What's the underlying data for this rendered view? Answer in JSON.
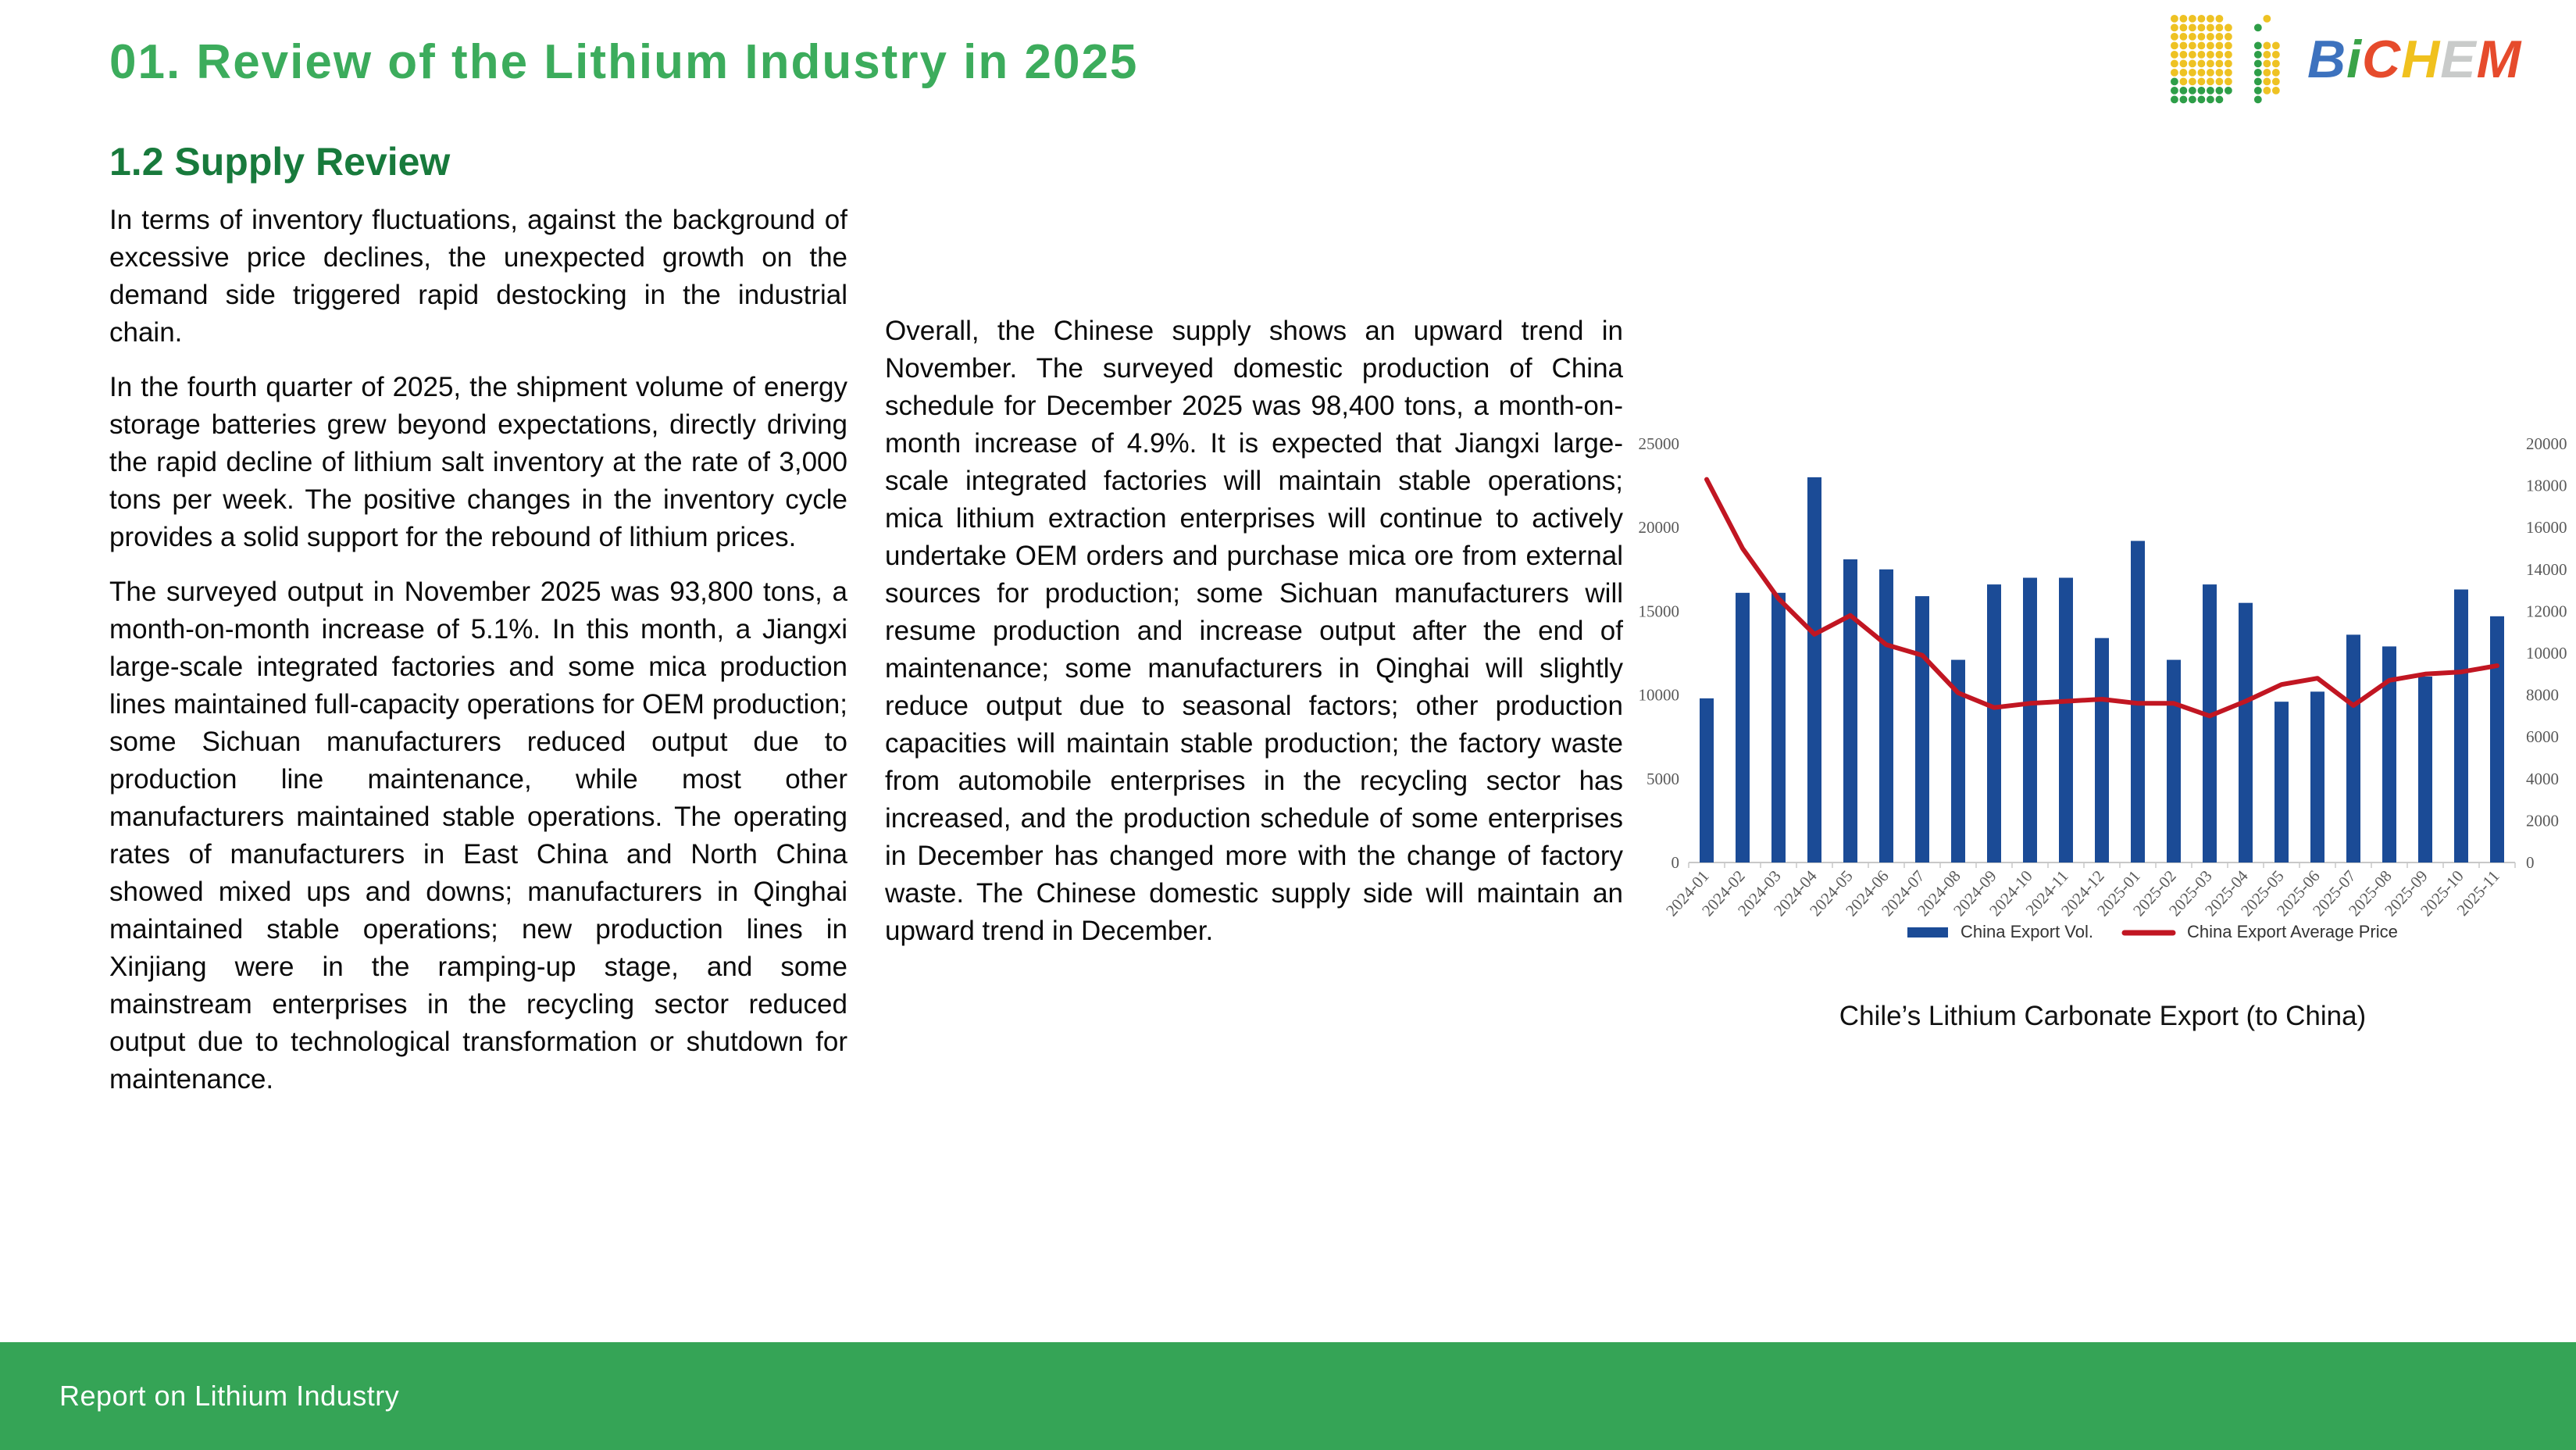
{
  "header": {
    "title": "01. Review of the Lithium Industry in 2025",
    "section": "1.2 Supply Review"
  },
  "logo": {
    "icon": "bichem-dot-matrix-icon",
    "letters": [
      {
        "ch": "B",
        "color": "#3D72BE"
      },
      {
        "ch": "i",
        "color": "#3AA348"
      },
      {
        "ch": "C",
        "color": "#E64B2C"
      },
      {
        "ch": "H",
        "color": "#F0C11E"
      },
      {
        "ch": "E",
        "color": "#C9CBCA"
      },
      {
        "ch": "M",
        "color": "#E64B2C"
      }
    ],
    "dot_yellow": "#EEC223",
    "dot_green": "#2E9E48"
  },
  "column1": {
    "paragraphs": [
      "In terms of inventory fluctuations, against the background of excessive price declines, the unexpected growth on the demand side triggered rapid destocking in the industrial chain.",
      "In the fourth quarter of 2025, the shipment volume of energy storage batteries grew beyond expectations, directly driving the rapid decline of lithium salt inventory at the rate of 3,000 tons per week. The positive changes in the inventory cycle provides a solid support for the rebound of lithium prices.",
      "The surveyed output in November 2025 was 93,800 tons, a month-on-month increase of 5.1%. In this month, a Jiangxi large-scale integrated factories and some mica production lines maintained full-capacity operations for OEM production; some Sichuan manufacturers reduced output due to production line maintenance, while most other manufacturers maintained stable operations. The operating rates of manufacturers in East China and North China showed mixed ups and downs; manufacturers in Qinghai maintained stable operations; new production lines in Xinjiang were in the ramping-up stage, and some mainstream enterprises in the recycling sector reduced output due to technological transformation or shutdown for maintenance."
    ]
  },
  "column2": {
    "paragraphs": [
      "Overall, the Chinese supply shows an upward trend in November. The surveyed domestic production of China schedule for December 2025 was 98,400 tons, a month-on-month increase of 4.9%. It is expected that Jiangxi large-scale integrated factories will maintain stable operations; mica lithium extraction enterprises will continue to actively undertake OEM orders and purchase mica ore from external sources for production; some Sichuan manufacturers will resume production and increase output after the end of maintenance; some manufacturers in Qinghai will slightly reduce output due to seasonal factors; other production capacities will maintain stable production; the factory waste from automobile enterprises in the recycling sector has increased, and the production schedule of some enterprises in December has changed more with the change of factory waste. The Chinese domestic supply side will maintain an upward trend in December."
    ]
  },
  "chart": {
    "caption": "Chile’s Lithium Carbonate Export (to China)"
  },
  "chart_data": {
    "type": "bar",
    "title": "Chile’s Lithium Carbonate Export (to China)",
    "categories": [
      "2024-01",
      "2024-02",
      "2024-03",
      "2024-04",
      "2024-05",
      "2024-06",
      "2024-07",
      "2024-08",
      "2024-09",
      "2024-10",
      "2024-11",
      "2024-12",
      "2025-01",
      "2025-02",
      "2025-03",
      "2025-04",
      "2025-05",
      "2025-06",
      "2025-07",
      "2025-08",
      "2025-09",
      "2025-10",
      "2025-11"
    ],
    "series": [
      {
        "name": "China Export Vol.",
        "type": "bar",
        "axis": "left",
        "color": "#1B4B96",
        "values": [
          9800,
          16100,
          16100,
          23000,
          18100,
          17500,
          15900,
          12100,
          16600,
          17000,
          17000,
          13400,
          19200,
          12100,
          16600,
          15500,
          9600,
          10200,
          13600,
          12900,
          11100,
          16300,
          14700
        ]
      },
      {
        "name": "China Export Average Price",
        "type": "line",
        "axis": "right",
        "color": "#C11622",
        "values": [
          18300,
          15000,
          12600,
          10900,
          11800,
          10400,
          9900,
          8100,
          7400,
          7600,
          7700,
          7800,
          7600,
          7600,
          7000,
          7700,
          8500,
          8800,
          7500,
          8700,
          9000,
          9100,
          9400
        ]
      }
    ],
    "left_axis": {
      "min": 0,
      "max": 25000,
      "step": 5000
    },
    "right_axis": {
      "min": 0,
      "max": 20000,
      "step": 2000
    },
    "grid": false,
    "legend_position": "bottom",
    "xlabel": "",
    "ylabel": ""
  },
  "footer": {
    "label": "Report on Lithium Industry"
  }
}
